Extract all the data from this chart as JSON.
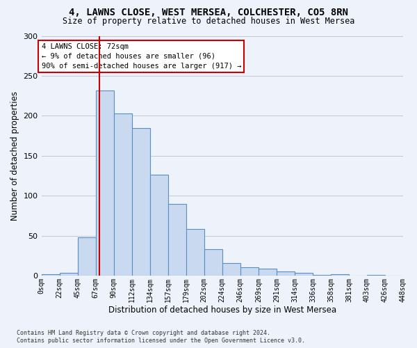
{
  "title": "4, LAWNS CLOSE, WEST MERSEA, COLCHESTER, CO5 8RN",
  "subtitle": "Size of property relative to detached houses in West Mersea",
  "xlabel": "Distribution of detached houses by size in West Mersea",
  "ylabel": "Number of detached properties",
  "bar_color": "#c8d9f0",
  "bar_edge_color": "#5a8fc2",
  "background_color": "#eef2fb",
  "grid_color": "#c0c8d8",
  "bin_labels": [
    "0sqm",
    "22sqm",
    "45sqm",
    "67sqm",
    "90sqm",
    "112sqm",
    "134sqm",
    "157sqm",
    "179sqm",
    "202sqm",
    "224sqm",
    "246sqm",
    "269sqm",
    "291sqm",
    "314sqm",
    "336sqm",
    "358sqm",
    "381sqm",
    "403sqm",
    "426sqm",
    "448sqm"
  ],
  "bar_heights": [
    2,
    3,
    48,
    232,
    203,
    185,
    126,
    90,
    58,
    33,
    16,
    10,
    9,
    5,
    3,
    1,
    2,
    0,
    1,
    0
  ],
  "vline_color": "#cc0000",
  "vline_position": 3.22,
  "ylim": [
    0,
    300
  ],
  "yticks": [
    0,
    50,
    100,
    150,
    200,
    250,
    300
  ],
  "annotation_line1": "4 LAWNS CLOSE: 72sqm",
  "annotation_line2": "← 9% of detached houses are smaller (96)",
  "annotation_line3": "90% of semi-detached houses are larger (917) →",
  "annotation_box_facecolor": "white",
  "annotation_box_edgecolor": "#cc0000",
  "footer_line1": "Contains HM Land Registry data © Crown copyright and database right 2024.",
  "footer_line2": "Contains public sector information licensed under the Open Government Licence v3.0."
}
